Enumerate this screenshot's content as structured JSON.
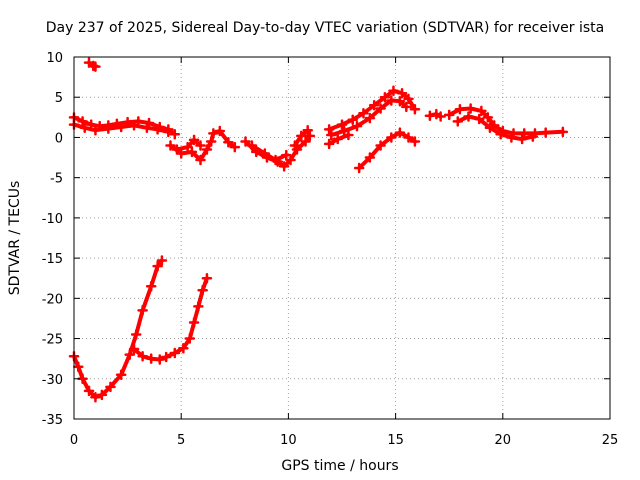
{
  "chart_data": {
    "type": "scatter",
    "title": "Day 237 of 2025, Sidereal Day-to-day VTEC variation (SDTVAR) for receiver ista",
    "xlabel": "GPS time / hours",
    "ylabel": "SDTVAR / TECUs",
    "xlim": [
      0,
      25
    ],
    "ylim": [
      -35,
      10
    ],
    "xticks": [
      0,
      5,
      10,
      15,
      20,
      25
    ],
    "yticks": [
      -35,
      -30,
      -25,
      -20,
      -15,
      -10,
      -5,
      0,
      5,
      10
    ],
    "grid": true,
    "marker_color": "#ff0000",
    "series": [
      {
        "name": "upper-left-track",
        "points": [
          [
            0.0,
            2.5
          ],
          [
            0.4,
            2.0
          ],
          [
            0.8,
            1.6
          ],
          [
            1.2,
            1.4
          ],
          [
            1.6,
            1.5
          ],
          [
            2.0,
            1.7
          ],
          [
            2.5,
            1.9
          ],
          [
            3.0,
            2.0
          ],
          [
            3.5,
            1.8
          ],
          [
            4.0,
            1.3
          ],
          [
            4.4,
            1.0
          ],
          [
            4.7,
            0.4
          ]
        ]
      },
      {
        "name": "upper-left-track-b",
        "points": [
          [
            0.0,
            1.6
          ],
          [
            0.5,
            1.2
          ],
          [
            1.0,
            0.9
          ],
          [
            1.6,
            1.1
          ],
          [
            2.2,
            1.3
          ],
          [
            2.8,
            1.5
          ],
          [
            3.4,
            1.2
          ],
          [
            3.9,
            1.0
          ],
          [
            4.4,
            0.7
          ]
        ]
      },
      {
        "name": "dip-5h",
        "points": [
          [
            4.5,
            -1.0
          ],
          [
            5.0,
            -2.0
          ],
          [
            5.5,
            -1.8
          ],
          [
            5.9,
            -2.8
          ],
          [
            6.2,
            -1.5
          ],
          [
            6.4,
            -0.5
          ],
          [
            6.5,
            0.5
          ],
          [
            6.8,
            0.8
          ],
          [
            7.2,
            -0.6
          ],
          [
            7.5,
            -1.2
          ]
        ]
      },
      {
        "name": "dip-5h-b",
        "points": [
          [
            4.8,
            -1.5
          ],
          [
            5.3,
            -1.2
          ],
          [
            5.6,
            -0.3
          ],
          [
            5.9,
            -1.0
          ]
        ]
      },
      {
        "name": "mid-dip",
        "points": [
          [
            8.0,
            -0.5
          ],
          [
            8.5,
            -1.8
          ],
          [
            9.0,
            -2.5
          ],
          [
            9.5,
            -3.0
          ],
          [
            9.8,
            -3.6
          ],
          [
            10.1,
            -2.8
          ],
          [
            10.4,
            -1.5
          ],
          [
            10.8,
            -0.5
          ],
          [
            11.0,
            0.2
          ]
        ]
      },
      {
        "name": "mid-dip-b",
        "points": [
          [
            8.3,
            -1.0
          ],
          [
            8.9,
            -2.0
          ],
          [
            9.4,
            -2.8
          ],
          [
            9.9,
            -2.2
          ]
        ]
      },
      {
        "name": "mid-rise",
        "points": [
          [
            10.3,
            -1.0
          ],
          [
            10.6,
            0.2
          ],
          [
            10.9,
            0.9
          ]
        ]
      },
      {
        "name": "peak-15h-upper",
        "points": [
          [
            11.9,
            1.0
          ],
          [
            12.5,
            1.6
          ],
          [
            13.0,
            2.2
          ],
          [
            13.5,
            3.0
          ],
          [
            14.0,
            4.0
          ],
          [
            14.5,
            5.0
          ],
          [
            14.9,
            5.8
          ],
          [
            15.3,
            5.5
          ],
          [
            15.6,
            4.8
          ],
          [
            15.9,
            3.5
          ]
        ]
      },
      {
        "name": "peak-15h-lower",
        "points": [
          [
            12.0,
            0.3
          ],
          [
            12.6,
            0.8
          ],
          [
            13.2,
            1.4
          ],
          [
            13.8,
            2.4
          ],
          [
            14.3,
            3.6
          ],
          [
            14.8,
            4.6
          ],
          [
            15.2,
            4.5
          ],
          [
            15.5,
            3.8
          ]
        ]
      },
      {
        "name": "rise-15h-low",
        "points": [
          [
            11.9,
            -0.8
          ],
          [
            12.3,
            -0.2
          ],
          [
            12.8,
            0.3
          ]
        ]
      },
      {
        "name": "lower-hump-15h",
        "points": [
          [
            13.3,
            -3.8
          ],
          [
            13.8,
            -2.5
          ],
          [
            14.3,
            -1.0
          ],
          [
            14.8,
            0.0
          ],
          [
            15.2,
            0.6
          ],
          [
            15.6,
            0.0
          ],
          [
            15.9,
            -0.5
          ]
        ]
      },
      {
        "name": "small-segment-16h",
        "points": [
          [
            16.6,
            2.7
          ],
          [
            16.9,
            2.9
          ],
          [
            17.1,
            2.6
          ]
        ]
      },
      {
        "name": "hump-18h-upper",
        "points": [
          [
            17.5,
            2.8
          ],
          [
            18.0,
            3.5
          ],
          [
            18.5,
            3.6
          ],
          [
            19.0,
            3.3
          ],
          [
            19.3,
            2.5
          ],
          [
            19.6,
            1.5
          ],
          [
            20.0,
            0.8
          ],
          [
            20.5,
            0.5
          ],
          [
            21.0,
            0.5
          ],
          [
            21.5,
            0.5
          ],
          [
            22.0,
            0.6
          ],
          [
            22.8,
            0.7
          ]
        ]
      },
      {
        "name": "hump-18h-lower",
        "points": [
          [
            17.9,
            2.0
          ],
          [
            18.4,
            2.6
          ],
          [
            18.9,
            2.3
          ],
          [
            19.4,
            1.2
          ],
          [
            19.9,
            0.4
          ],
          [
            20.4,
            0.0
          ],
          [
            20.9,
            -0.2
          ],
          [
            21.4,
            0.1
          ]
        ]
      },
      {
        "name": "outlier-top",
        "points": [
          [
            0.7,
            9.3
          ],
          [
            0.9,
            8.9
          ],
          [
            1.0,
            8.8
          ]
        ]
      },
      {
        "name": "deep-dip-1",
        "points": [
          [
            0.0,
            -27.2
          ],
          [
            0.2,
            -28.5
          ],
          [
            0.4,
            -30.0
          ],
          [
            0.7,
            -31.5
          ],
          [
            1.0,
            -32.3
          ],
          [
            1.3,
            -32.0
          ],
          [
            1.7,
            -31.0
          ],
          [
            2.2,
            -29.5
          ],
          [
            2.6,
            -27.0
          ],
          [
            2.9,
            -24.5
          ],
          [
            3.2,
            -21.5
          ],
          [
            3.6,
            -18.5
          ],
          [
            3.9,
            -16.0
          ],
          [
            4.1,
            -15.3
          ]
        ]
      },
      {
        "name": "deep-dip-2",
        "points": [
          [
            2.8,
            -26.3
          ],
          [
            3.2,
            -27.2
          ],
          [
            3.6,
            -27.5
          ],
          [
            4.0,
            -27.6
          ],
          [
            4.3,
            -27.3
          ],
          [
            4.7,
            -26.8
          ],
          [
            5.1,
            -26.2
          ],
          [
            5.4,
            -25.0
          ],
          [
            5.6,
            -23.0
          ],
          [
            5.8,
            -21.0
          ],
          [
            6.0,
            -19.0
          ],
          [
            6.2,
            -17.5
          ]
        ]
      }
    ]
  }
}
